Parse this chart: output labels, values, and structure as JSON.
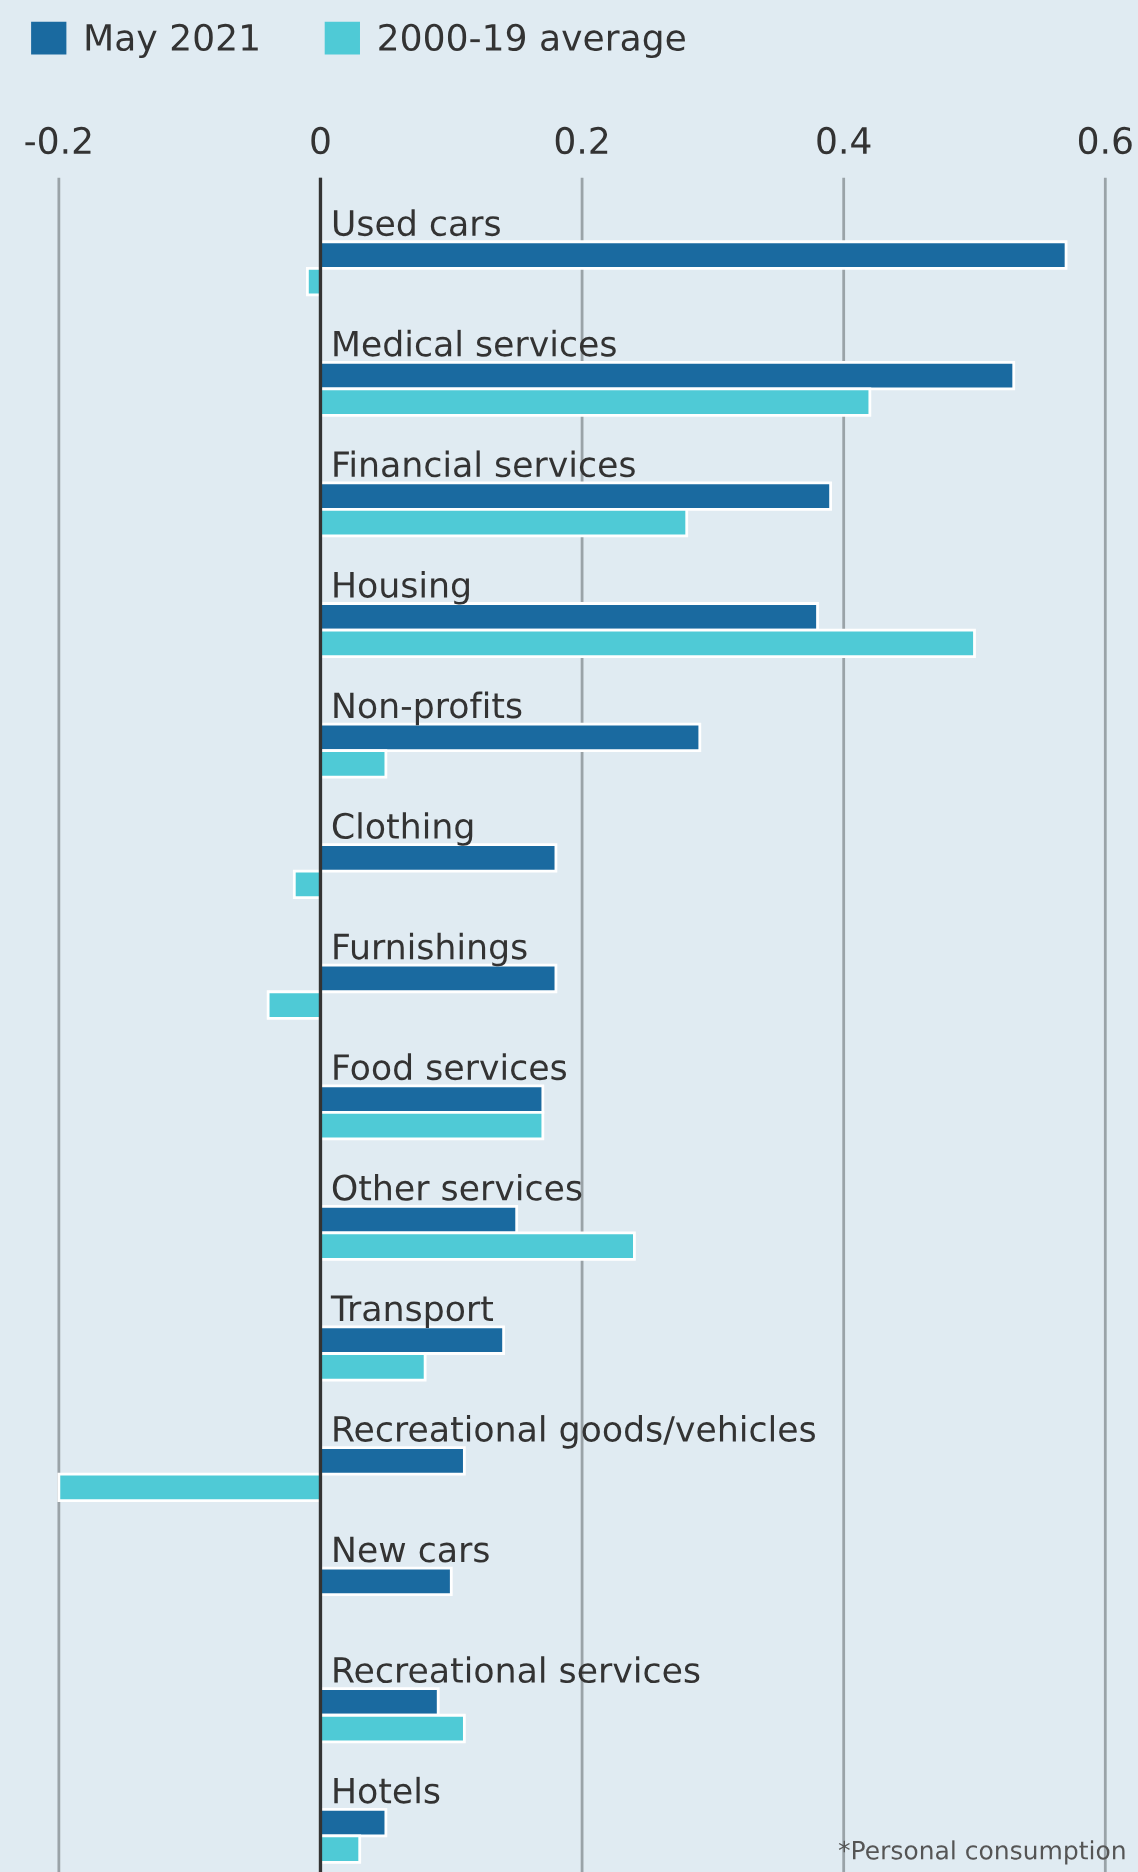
{
  "chart_data": {
    "type": "bar",
    "orientation": "horizontal",
    "categories": [
      "Used cars",
      "Medical services",
      "Financial services",
      "Housing",
      "Non-profits",
      "Clothing",
      "Furnishings",
      "Food services",
      "Other services",
      "Transport",
      "Recreational goods/vehicles",
      "New cars",
      "Recreational services",
      "Hotels"
    ],
    "series": [
      {
        "name": "May 2021",
        "color": "#1a6aa0",
        "values": [
          0.57,
          0.53,
          0.39,
          0.38,
          0.29,
          0.18,
          0.18,
          0.17,
          0.15,
          0.14,
          0.11,
          0.1,
          0.09,
          0.05
        ]
      },
      {
        "name": "2000-19 average",
        "color": "#4fcad6",
        "values": [
          -0.01,
          0.42,
          0.28,
          0.5,
          0.05,
          -0.02,
          -0.04,
          0.17,
          0.24,
          0.08,
          -0.2,
          null,
          0.11,
          0.03
        ]
      }
    ],
    "xlim": [
      -0.245,
      0.625
    ],
    "xticks": [
      -0.2,
      0,
      0.2,
      0.4,
      0.6
    ],
    "grid": "x",
    "legend": "top left",
    "annotations": [
      "*Personal consumption"
    ]
  }
}
